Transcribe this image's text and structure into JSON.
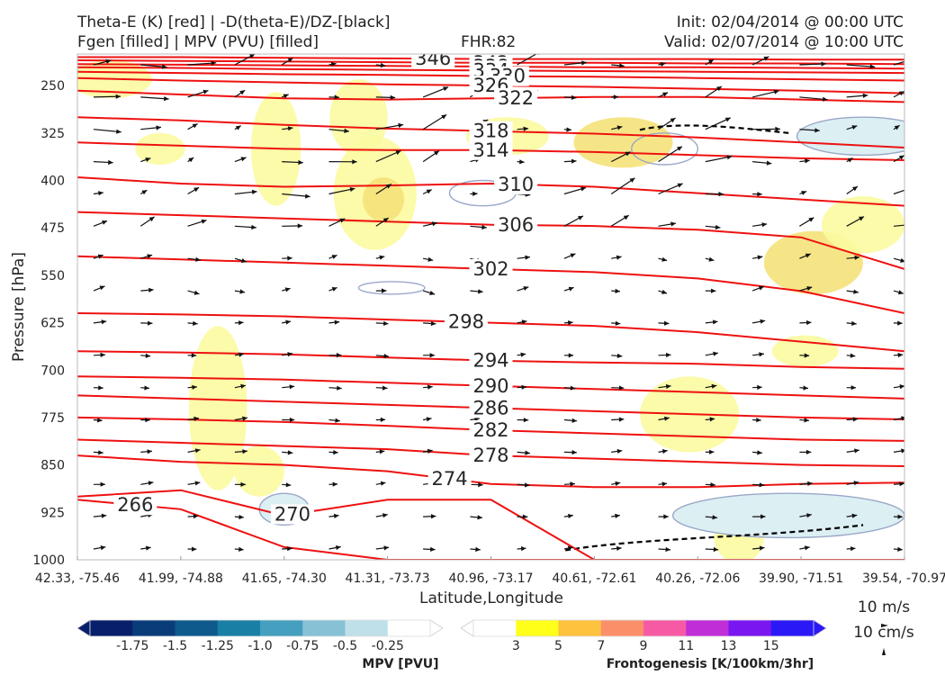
{
  "titles": {
    "top_left_1": "Theta-E (K) [red] | -D(theta-E)/DZ-[black]",
    "top_left_2": "Fgen [filled] | MPV (PVU) [filled]",
    "top_center": "FHR:82",
    "top_right_1": "Init: 02/04/2014 @ 00:00 UTC",
    "top_right_2": "Valid: 02/07/2014 @ 10:00 UTC"
  },
  "colors": {
    "theta_e": "#ee1111",
    "theta_e_label": "#f06060",
    "neg_dthetae": "#000000",
    "fgen_low": "#fbfba0",
    "fgen_mid": "#f5e27a",
    "mpv_contour": "#9aa8c8",
    "mpv_fill": "#dceff3",
    "arrow": "#111111"
  },
  "chart_data": {
    "type": "cross-section",
    "xlabel": "Latitude,Longitude",
    "ylabel": "Pressure [hPa]",
    "x_ticks": [
      "42.33, -75.46",
      "41.99, -74.88",
      "41.65, -74.30",
      "41.31, -73.73",
      "40.96, -73.17",
      "40.61, -72.61",
      "40.26, -72.06",
      "39.90, -71.51",
      "39.54, -70.97"
    ],
    "y_ticks": [
      250,
      325,
      400,
      475,
      550,
      625,
      700,
      775,
      850,
      925,
      1000
    ],
    "ylim": [
      1000,
      200
    ],
    "grid": false,
    "theta_e_contours": [
      {
        "value": 346,
        "label": "346",
        "p": [
          205,
          205,
          206,
          207,
          208,
          208,
          208,
          209,
          209
        ],
        "label_x": 0.43
      },
      {
        "value": 342,
        "label": "342",
        "p": [
          210,
          211,
          212,
          213,
          214,
          214,
          215,
          215,
          216
        ],
        "label_x": 0.5
      },
      {
        "value": 338,
        "label": "338",
        "p": [
          216,
          217,
          218,
          219,
          220,
          221,
          221,
          222,
          223
        ],
        "label_x": 0.5
      },
      {
        "value": 334,
        "label": "334",
        "p": [
          221,
          222,
          224,
          225,
          226,
          227,
          228,
          229,
          230
        ],
        "label_x": 0.5
      },
      {
        "value": 330,
        "label": "330",
        "p": [
          228,
          230,
          232,
          233,
          235,
          236,
          238,
          240,
          242
        ],
        "label_x": 0.52
      },
      {
        "value": 326,
        "label": "326",
        "p": [
          238,
          242,
          245,
          248,
          250,
          252,
          255,
          258,
          262
        ],
        "label_x": 0.5
      },
      {
        "value": 322,
        "label": "322",
        "p": [
          258,
          264,
          270,
          272,
          270,
          268,
          268,
          272,
          276
        ],
        "label_x": 0.53
      },
      {
        "value": 318,
        "label": "318",
        "p": [
          300,
          305,
          312,
          318,
          322,
          326,
          332,
          340,
          348
        ],
        "label_x": 0.5
      },
      {
        "value": 314,
        "label": "314",
        "p": [
          340,
          345,
          350,
          352,
          352,
          355,
          360,
          365,
          368
        ],
        "label_x": 0.5
      },
      {
        "value": 310,
        "label": "310",
        "p": [
          395,
          405,
          410,
          408,
          405,
          410,
          420,
          430,
          440
        ],
        "label_x": 0.53
      },
      {
        "value": 306,
        "label": "306",
        "p": [
          450,
          455,
          460,
          465,
          470,
          472,
          478,
          490,
          540
        ],
        "label_x": 0.53
      },
      {
        "value": 302,
        "label": "302",
        "p": [
          520,
          525,
          530,
          535,
          540,
          545,
          555,
          575,
          610
        ],
        "label_x": 0.5
      },
      {
        "value": 298,
        "label": "298",
        "p": [
          610,
          612,
          615,
          620,
          625,
          630,
          640,
          655,
          670
        ],
        "label_x": 0.47
      },
      {
        "value": 294,
        "label": "294",
        "p": [
          670,
          672,
          675,
          680,
          685,
          688,
          690,
          695,
          698
        ],
        "label_x": 0.5
      },
      {
        "value": 290,
        "label": "290",
        "p": [
          710,
          712,
          715,
          720,
          725,
          730,
          735,
          740,
          745
        ],
        "label_x": 0.5
      },
      {
        "value": 286,
        "label": "286",
        "p": [
          740,
          745,
          750,
          755,
          760,
          765,
          770,
          775,
          778
        ],
        "label_x": 0.5
      },
      {
        "value": 282,
        "label": "282",
        "p": [
          775,
          778,
          782,
          788,
          795,
          800,
          805,
          810,
          812
        ],
        "label_x": 0.5
      },
      {
        "value": 278,
        "label": "278",
        "p": [
          810,
          815,
          820,
          825,
          835,
          840,
          845,
          850,
          852
        ],
        "label_x": 0.5
      },
      {
        "value": 274,
        "label": "274",
        "p": [
          835,
          845,
          850,
          860,
          880,
          885,
          885,
          880,
          878
        ],
        "label_x": 0.45
      },
      {
        "value": 270,
        "label": "270",
        "p": [
          900,
          890,
          930,
          905,
          905,
          1000,
          1000,
          1000,
          1000
        ],
        "label_x": 0.26
      },
      {
        "value": 266,
        "label": "266",
        "p": [
          905,
          920,
          980,
          1000,
          1000,
          1000,
          1000,
          1000,
          1000
        ],
        "label_x": 0.07
      }
    ],
    "wind_reference": {
      "u_label": "10 m/s",
      "w_label": "10 cm/s"
    },
    "colorbars": [
      {
        "name": "MPV [PVU]",
        "ticks": [
          "-1.75",
          "-1.5",
          "-1.25",
          "-1.0",
          "-0.75",
          "-0.5",
          "-0.25"
        ],
        "colors": [
          "#08206b",
          "#0b3c7a",
          "#0e5a8c",
          "#197fa5",
          "#45a0c0",
          "#86c1d6",
          "#c0e0e9",
          "#ffffff"
        ]
      },
      {
        "name": "Frontogenesis [K/100km/3hr]",
        "ticks": [
          "3",
          "5",
          "7",
          "9",
          "11",
          "13",
          "15"
        ],
        "colors": [
          "#ffffff",
          "#ffff1a",
          "#fdc23e",
          "#fb8f6a",
          "#f75aa5",
          "#c02ed8",
          "#7a16f0",
          "#2b18f7"
        ]
      }
    ]
  }
}
